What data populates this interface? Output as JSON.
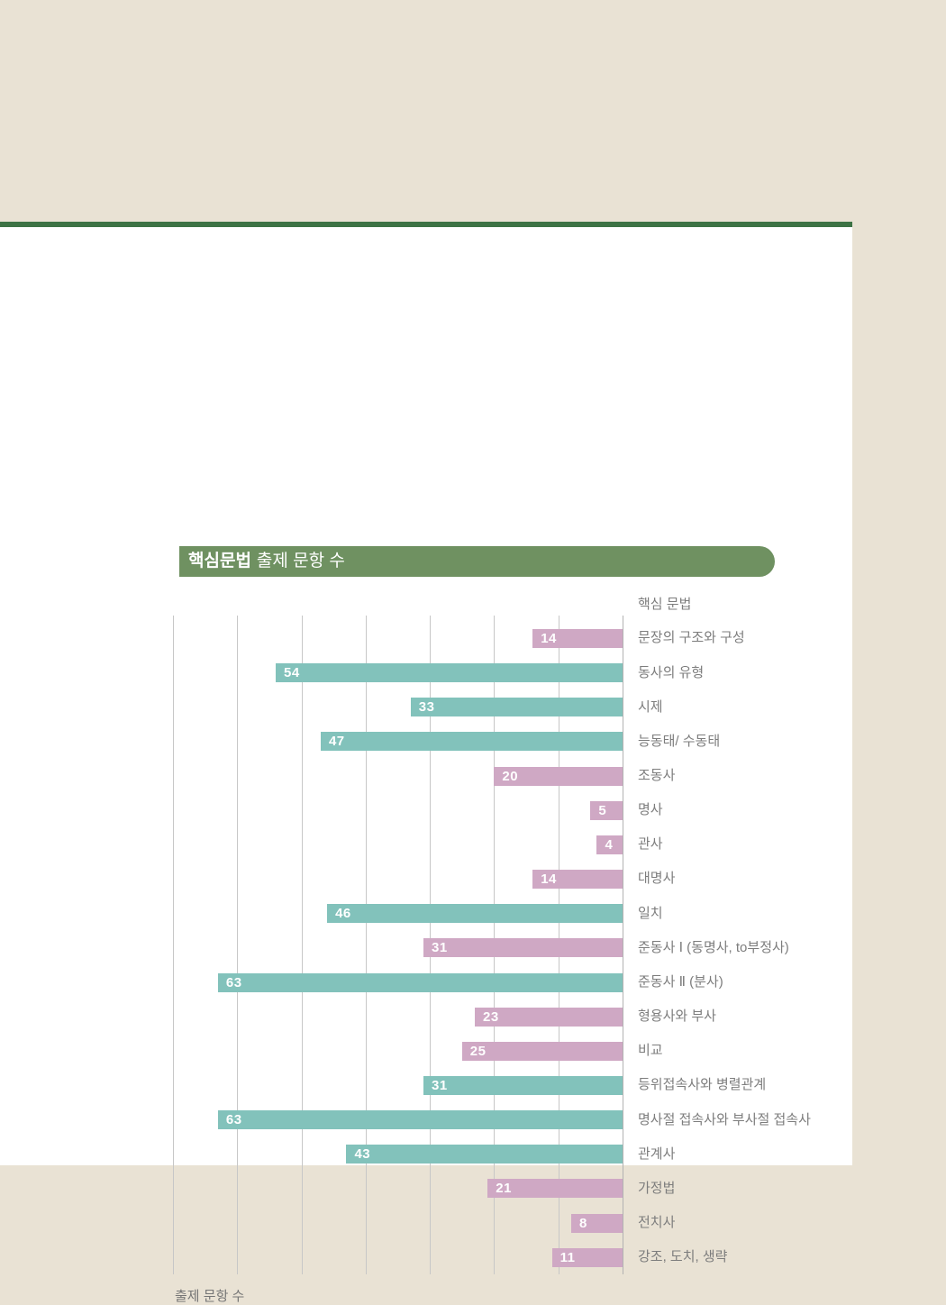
{
  "page": {
    "background_color": "#e9e2d4",
    "panel_color": "#ffffff",
    "top_rule_color": "#3d7345"
  },
  "header": {
    "title_bold": "핵심문법",
    "title_rest": "출제 문항 수",
    "bar_color": "#6f9161",
    "text_color": "#ffffff"
  },
  "chart_data": {
    "type": "bar",
    "orientation": "horizontal",
    "bars_aligned": "right",
    "column_header": "핵심 문법",
    "xlabel": "출제 문항 수",
    "x_max": 70,
    "x_gridline_step": 10,
    "grid": true,
    "palette": {
      "teal": "#82c2bb",
      "pink": "#cfa8c4"
    },
    "categories": [
      "문장의 구조와 구성",
      "동사의 유형",
      "시제",
      "능동태/ 수동태",
      "조동사",
      "명사",
      "관사",
      "대명사",
      "일치",
      "준동사 Ⅰ (동명사, to부정사)",
      "준동사 Ⅱ (분사)",
      "형용사와 부사",
      "비교",
      "등위접속사와 병렬관계",
      "명사절 접속사와 부사절 접속사",
      "관계사",
      "가정법",
      "전치사",
      "강조, 도치, 생략"
    ],
    "values": [
      14,
      54,
      33,
      47,
      20,
      5,
      4,
      14,
      46,
      31,
      63,
      23,
      25,
      31,
      63,
      43,
      21,
      8,
      11
    ],
    "bar_colors": [
      "pink",
      "teal",
      "teal",
      "teal",
      "pink",
      "pink",
      "pink",
      "pink",
      "teal",
      "pink",
      "teal",
      "pink",
      "pink",
      "teal",
      "teal",
      "teal",
      "pink",
      "pink",
      "pink"
    ]
  }
}
